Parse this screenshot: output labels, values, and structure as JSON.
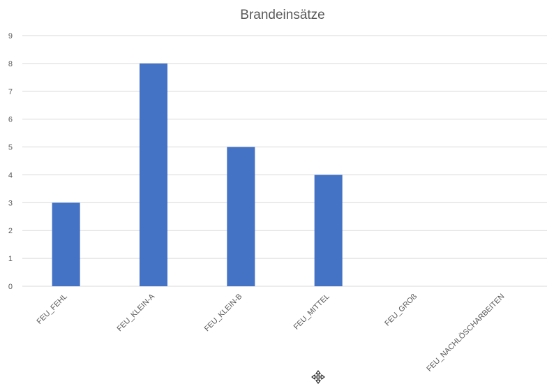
{
  "chart_data": {
    "type": "bar",
    "title": "Brandeinsätze",
    "categories": [
      "FEU_FEHL",
      "FEU_KLEIN-A",
      "FEU_KLEIN-B",
      "FEU_MITTEL",
      "FEU_GROß",
      "FEU_NACHLÖSCHARBEITEN"
    ],
    "values": [
      3,
      8,
      5,
      4,
      0,
      0
    ],
    "ylim": [
      0,
      9
    ],
    "yticks": [
      0,
      1,
      2,
      3,
      4,
      5,
      6,
      7,
      8,
      9
    ],
    "xlabel": "",
    "ylabel": "",
    "grid": true,
    "bar_color": "#4472c4"
  },
  "cursor": {
    "icon": "move-cursor-icon"
  }
}
